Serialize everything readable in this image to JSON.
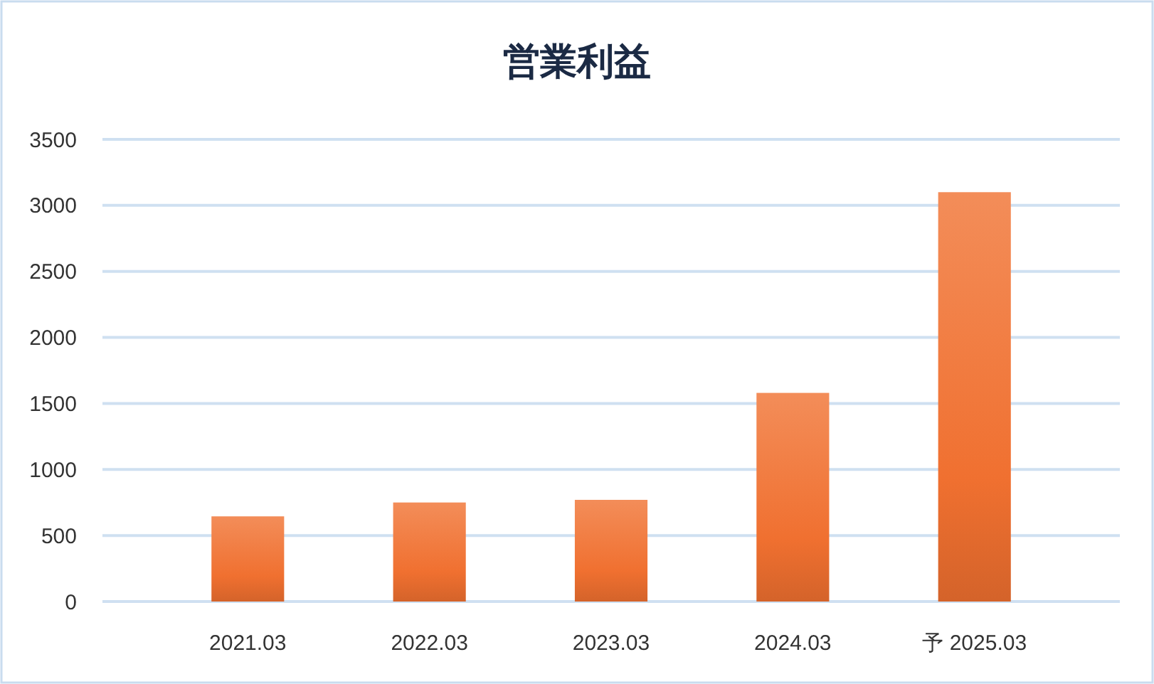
{
  "chart_data": {
    "type": "bar",
    "title": "営業利益",
    "categories": [
      "2021.03",
      "2022.03",
      "2023.03",
      "2024.03",
      "予 2025.03"
    ],
    "values": [
      645,
      750,
      770,
      1580,
      3100
    ],
    "color": "#f07030",
    "ylim": [
      0,
      3500
    ],
    "yticks": [
      0,
      500,
      1000,
      1500,
      2000,
      2500,
      3000,
      3500
    ],
    "grid": "y"
  }
}
